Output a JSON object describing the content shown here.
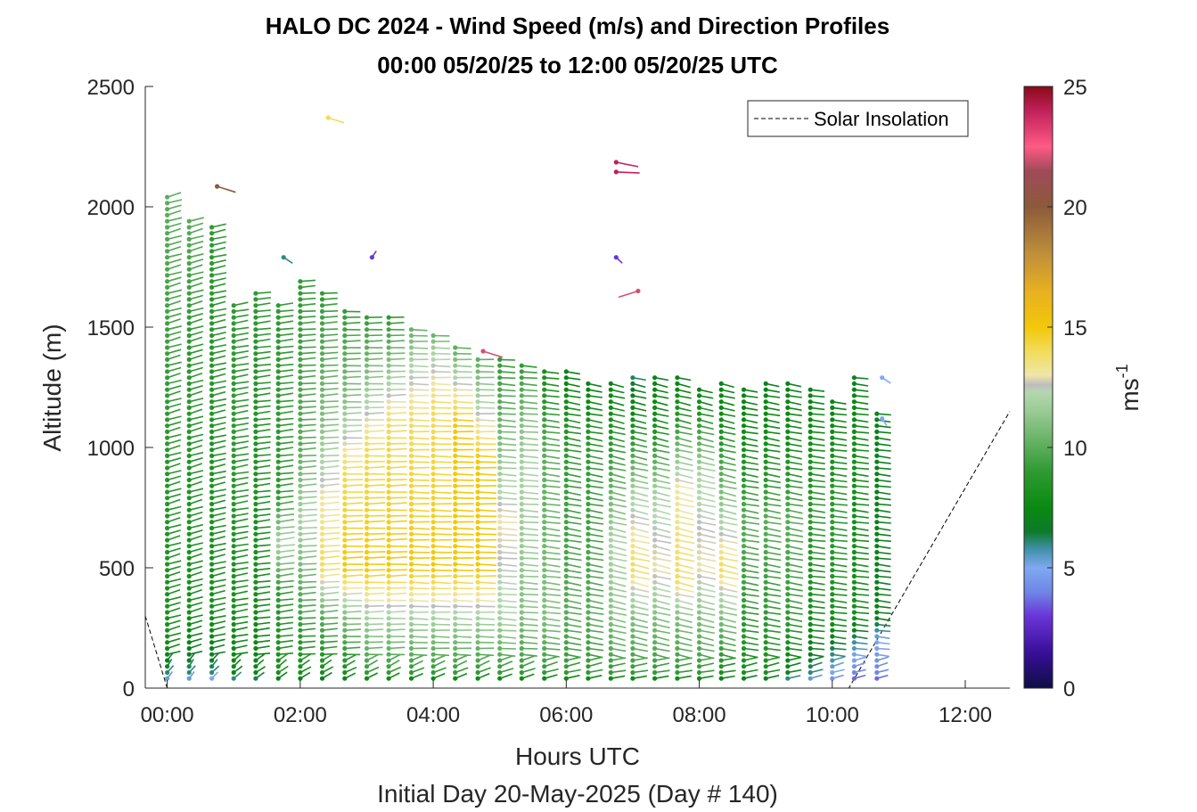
{
  "chart_data": {
    "type": "scatter",
    "title_line1": "HALO DC 2024 - Wind Speed (m/s) and Direction Profiles",
    "title_line2": "00:00 05/20/25 to 12:00 05/20/25  UTC",
    "xlabel": "Hours UTC",
    "xlabel2": "Initial Day 20-May-2025 (Day # 140)",
    "ylabel": "Altitude (m)",
    "colorbar_label": "ms",
    "colorbar_label_sup": "-1",
    "xlim": [
      -0.33,
      12.67
    ],
    "ylim": [
      0,
      2500
    ],
    "x_ticks": [
      0,
      2,
      4,
      6,
      8,
      10,
      12
    ],
    "x_tick_labels": [
      "00:00",
      "02:00",
      "04:00",
      "06:00",
      "08:00",
      "10:00",
      "12:00"
    ],
    "y_ticks": [
      0,
      500,
      1000,
      1500,
      2000,
      2500
    ],
    "y_tick_labels": [
      "0",
      "500",
      "1000",
      "1500",
      "2000",
      "2500"
    ],
    "colorbar_ticks": [
      0,
      5,
      10,
      15,
      20,
      25
    ],
    "colorbar_tick_labels": [
      "0",
      "5",
      "10",
      "15",
      "20",
      "25"
    ],
    "clim": [
      0,
      25
    ],
    "legend": {
      "label": "Solar Insolation",
      "position": "top-right"
    },
    "solar_insolation": [
      [
        -0.33,
        300
      ],
      [
        0,
        0
      ],
      [
        10.25,
        0
      ],
      [
        12.67,
        1150
      ]
    ],
    "profiles": [
      {
        "t": 0.0,
        "top": 2050,
        "spd": [
          [
            0,
            4
          ],
          [
            60,
            6
          ],
          [
            200,
            8
          ],
          [
            1200,
            9
          ],
          [
            2000,
            10
          ]
        ],
        "dir": 240
      },
      {
        "t": 0.33,
        "top": 1960,
        "spd": [
          [
            0,
            4
          ],
          [
            60,
            6
          ],
          [
            300,
            8
          ],
          [
            1500,
            9
          ],
          [
            1960,
            10
          ]
        ],
        "dir": 240
      },
      {
        "t": 0.67,
        "top": 1920,
        "spd": [
          [
            0,
            3
          ],
          [
            60,
            6
          ],
          [
            300,
            8
          ],
          [
            1920,
            9
          ]
        ],
        "dir": 245
      },
      {
        "t": 1.0,
        "top": 1610,
        "spd": [
          [
            0,
            4
          ],
          [
            60,
            7
          ],
          [
            300,
            8
          ],
          [
            1000,
            9
          ],
          [
            1610,
            9
          ]
        ],
        "dir": 250
      },
      {
        "t": 1.33,
        "top": 1650,
        "spd": [
          [
            0,
            5
          ],
          [
            60,
            7
          ],
          [
            400,
            8
          ],
          [
            1650,
            9
          ]
        ],
        "dir": 255
      },
      {
        "t": 1.67,
        "top": 1600,
        "spd": [
          [
            0,
            5
          ],
          [
            60,
            8
          ],
          [
            400,
            9
          ],
          [
            600,
            12
          ],
          [
            800,
            9
          ],
          [
            1600,
            9
          ]
        ],
        "dir": 255
      },
      {
        "t": 2.0,
        "top": 1690,
        "spd": [
          [
            0,
            5
          ],
          [
            60,
            8
          ],
          [
            400,
            10
          ],
          [
            700,
            12
          ],
          [
            1000,
            10
          ],
          [
            1690,
            9
          ]
        ],
        "dir": 260
      },
      {
        "t": 2.33,
        "top": 1650,
        "spd": [
          [
            0,
            5
          ],
          [
            60,
            8
          ],
          [
            300,
            10
          ],
          [
            500,
            14
          ],
          [
            800,
            13
          ],
          [
            1100,
            11
          ],
          [
            1650,
            9
          ]
        ],
        "dir": 260
      },
      {
        "t": 2.67,
        "top": 1580,
        "spd": [
          [
            0,
            5
          ],
          [
            60,
            8
          ],
          [
            300,
            11
          ],
          [
            500,
            15
          ],
          [
            900,
            14
          ],
          [
            1200,
            11
          ],
          [
            1580,
            9
          ]
        ],
        "dir": 265
      },
      {
        "t": 3.0,
        "top": 1560,
        "spd": [
          [
            0,
            5
          ],
          [
            60,
            9
          ],
          [
            300,
            12
          ],
          [
            500,
            15
          ],
          [
            1000,
            14
          ],
          [
            1300,
            11
          ],
          [
            1560,
            9
          ]
        ],
        "dir": 265
      },
      {
        "t": 3.33,
        "top": 1540,
        "spd": [
          [
            0,
            5
          ],
          [
            60,
            9
          ],
          [
            300,
            12
          ],
          [
            500,
            15
          ],
          [
            1100,
            14
          ],
          [
            1350,
            11
          ],
          [
            1540,
            9
          ]
        ],
        "dir": 265
      },
      {
        "t": 3.67,
        "top": 1510,
        "spd": [
          [
            0,
            5
          ],
          [
            60,
            9
          ],
          [
            300,
            12
          ],
          [
            500,
            15
          ],
          [
            1100,
            14
          ],
          [
            1350,
            12
          ],
          [
            1510,
            10
          ]
        ],
        "dir": 270
      },
      {
        "t": 4.0,
        "top": 1480,
        "spd": [
          [
            0,
            5
          ],
          [
            60,
            9
          ],
          [
            300,
            12
          ],
          [
            500,
            15
          ],
          [
            1150,
            14
          ],
          [
            1400,
            12
          ],
          [
            1480,
            10
          ]
        ],
        "dir": 270
      },
      {
        "t": 4.33,
        "top": 1420,
        "spd": [
          [
            0,
            5
          ],
          [
            60,
            9
          ],
          [
            300,
            12
          ],
          [
            500,
            15
          ],
          [
            1100,
            15
          ],
          [
            1300,
            12
          ],
          [
            1420,
            10
          ]
        ],
        "dir": 270
      },
      {
        "t": 4.67,
        "top": 1380,
        "spd": [
          [
            0,
            5
          ],
          [
            60,
            9
          ],
          [
            300,
            12
          ],
          [
            500,
            15
          ],
          [
            950,
            15
          ],
          [
            1100,
            13
          ],
          [
            1380,
            10
          ]
        ],
        "dir": 270
      },
      {
        "t": 5.0,
        "top": 1370,
        "spd": [
          [
            0,
            5
          ],
          [
            60,
            9
          ],
          [
            300,
            12
          ],
          [
            700,
            13
          ],
          [
            1000,
            11
          ],
          [
            1370,
            9
          ]
        ],
        "dir": 275
      },
      {
        "t": 5.33,
        "top": 1340,
        "spd": [
          [
            0,
            5
          ],
          [
            60,
            9
          ],
          [
            300,
            11
          ],
          [
            900,
            12
          ],
          [
            1100,
            11
          ],
          [
            1340,
            9
          ]
        ],
        "dir": 275
      },
      {
        "t": 5.67,
        "top": 1320,
        "spd": [
          [
            0,
            5
          ],
          [
            60,
            9
          ],
          [
            300,
            11
          ],
          [
            1000,
            10
          ],
          [
            1320,
            8
          ]
        ],
        "dir": 280
      },
      {
        "t": 6.0,
        "top": 1330,
        "spd": [
          [
            0,
            5
          ],
          [
            60,
            9
          ],
          [
            300,
            10
          ],
          [
            1000,
            9
          ],
          [
            1330,
            7
          ]
        ],
        "dir": 285
      },
      {
        "t": 6.33,
        "top": 1270,
        "spd": [
          [
            0,
            5
          ],
          [
            60,
            9
          ],
          [
            300,
            10
          ],
          [
            1000,
            9
          ],
          [
            1270,
            7
          ]
        ],
        "dir": 285
      },
      {
        "t": 6.67,
        "top": 1280,
        "spd": [
          [
            0,
            5
          ],
          [
            60,
            9
          ],
          [
            300,
            11
          ],
          [
            600,
            12
          ],
          [
            1000,
            9
          ],
          [
            1280,
            7
          ]
        ],
        "dir": 290
      },
      {
        "t": 7.0,
        "top": 1310,
        "spd": [
          [
            0,
            5
          ],
          [
            60,
            9
          ],
          [
            300,
            11
          ],
          [
            500,
            14
          ],
          [
            800,
            12
          ],
          [
            1100,
            8
          ],
          [
            1310,
            6
          ]
        ],
        "dir": 290
      },
      {
        "t": 7.33,
        "top": 1300,
        "spd": [
          [
            0,
            5
          ],
          [
            60,
            9
          ],
          [
            300,
            11
          ],
          [
            500,
            13
          ],
          [
            800,
            12
          ],
          [
            1100,
            8
          ],
          [
            1300,
            7
          ]
        ],
        "dir": 290
      },
      {
        "t": 7.67,
        "top": 1290,
        "spd": [
          [
            0,
            5
          ],
          [
            60,
            9
          ],
          [
            300,
            11
          ],
          [
            450,
            14
          ],
          [
            850,
            13
          ],
          [
            1100,
            9
          ],
          [
            1290,
            7
          ]
        ],
        "dir": 290
      },
      {
        "t": 8.0,
        "top": 1260,
        "spd": [
          [
            0,
            5
          ],
          [
            60,
            9
          ],
          [
            300,
            11
          ],
          [
            500,
            13
          ],
          [
            900,
            12
          ],
          [
            1100,
            9
          ],
          [
            1260,
            7
          ]
        ],
        "dir": 290
      },
      {
        "t": 8.33,
        "top": 1270,
        "spd": [
          [
            0,
            5
          ],
          [
            60,
            8
          ],
          [
            300,
            11
          ],
          [
            500,
            14
          ],
          [
            800,
            11
          ],
          [
            1100,
            8
          ],
          [
            1270,
            7
          ]
        ],
        "dir": 290
      },
      {
        "t": 8.67,
        "top": 1250,
        "spd": [
          [
            0,
            5
          ],
          [
            60,
            8
          ],
          [
            300,
            9
          ],
          [
            700,
            10
          ],
          [
            1000,
            8
          ],
          [
            1250,
            7
          ]
        ],
        "dir": 285
      },
      {
        "t": 9.0,
        "top": 1270,
        "spd": [
          [
            0,
            5
          ],
          [
            60,
            8
          ],
          [
            300,
            9
          ],
          [
            700,
            10
          ],
          [
            1000,
            8
          ],
          [
            1270,
            7
          ]
        ],
        "dir": 285
      },
      {
        "t": 9.33,
        "top": 1270,
        "spd": [
          [
            0,
            4
          ],
          [
            60,
            7
          ],
          [
            300,
            9
          ],
          [
            700,
            10
          ],
          [
            1000,
            8
          ],
          [
            1270,
            7
          ]
        ],
        "dir": 285
      },
      {
        "t": 9.67,
        "top": 1250,
        "spd": [
          [
            0,
            4
          ],
          [
            60,
            6
          ],
          [
            300,
            8
          ],
          [
            700,
            9
          ],
          [
            1000,
            8
          ],
          [
            1250,
            7
          ]
        ],
        "dir": 280
      },
      {
        "t": 10.0,
        "top": 1210,
        "spd": [
          [
            0,
            3
          ],
          [
            60,
            5
          ],
          [
            300,
            8
          ],
          [
            700,
            9
          ],
          [
            1000,
            8
          ],
          [
            1210,
            7
          ]
        ],
        "dir": 280
      },
      {
        "t": 10.33,
        "top": 1300,
        "spd": [
          [
            0,
            3
          ],
          [
            60,
            4
          ],
          [
            200,
            6
          ],
          [
            300,
            8
          ],
          [
            1000,
            8
          ],
          [
            1300,
            7
          ]
        ],
        "dir": 280
      },
      {
        "t": 10.67,
        "top": 1140,
        "spd": [
          [
            0,
            3
          ],
          [
            60,
            4
          ],
          [
            200,
            5
          ],
          [
            300,
            7
          ],
          [
            1140,
            7
          ]
        ],
        "dir": 280
      }
    ],
    "scattered_points": [
      {
        "t": 2.42,
        "alt": 2370,
        "spd": 14,
        "dir": 300
      },
      {
        "t": 0.75,
        "alt": 2085,
        "spd": 20,
        "dir": 300
      },
      {
        "t": 6.75,
        "alt": 2185,
        "spd": 24,
        "dir": 290
      },
      {
        "t": 6.75,
        "alt": 2145,
        "spd": 24,
        "dir": 275
      },
      {
        "t": 1.75,
        "alt": 1790,
        "spd": 6,
        "dir": 320
      },
      {
        "t": 3.08,
        "alt": 1790,
        "spd": 3,
        "dir": 200
      },
      {
        "t": 6.75,
        "alt": 1790,
        "spd": 3,
        "dir": 330
      },
      {
        "t": 7.08,
        "alt": 1650,
        "spd": 22,
        "dir": 60
      },
      {
        "t": 4.75,
        "alt": 1400,
        "spd": 22,
        "dir": 300
      },
      {
        "t": 10.75,
        "alt": 1290,
        "spd": 5,
        "dir": 320
      },
      {
        "t": 10.75,
        "alt": 1120,
        "spd": 5,
        "dir": 340
      }
    ]
  }
}
